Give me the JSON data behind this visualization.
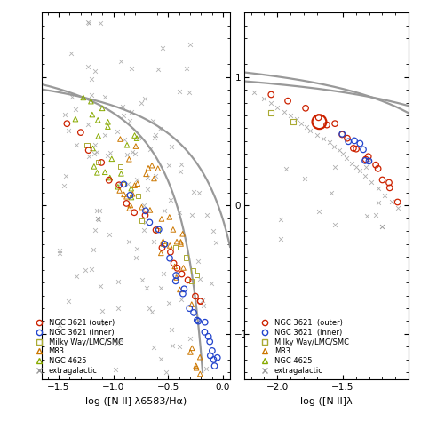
{
  "fig_width": 4.74,
  "fig_height": 4.74,
  "dpi": 100,
  "bg_color": "#ffffff",
  "panel1": {
    "xlim": [
      -1.65,
      0.07
    ],
    "ylim": [
      -1.35,
      1.5
    ],
    "xlabel": "log ([N II] λ6583/Hα)",
    "xticks": [
      -1.5,
      -1.0,
      -0.5,
      0.0
    ],
    "yticks": [
      -1.0,
      0.0,
      1.0
    ]
  },
  "panel2": {
    "xlim": [
      -2.25,
      -1.0
    ],
    "ylim": [
      -1.35,
      1.5
    ],
    "xlabel": "log ([N II]λ",
    "xticks": [
      -2.0,
      -1.5
    ],
    "yticks": [
      -1.0,
      0.0,
      1.0
    ]
  },
  "curve_color": "#999999",
  "curve_lw": 1.6,
  "ngc3621_outer_color": "#cc2200",
  "ngc3621_inner_color": "#2244cc",
  "mw_lmc_smc_color": "#aaaa33",
  "m83_color": "#cc7700",
  "ngc4625_color": "#88aa00",
  "extragalactic_color": "#999999",
  "legend_fontsize": 6.0,
  "axis_fontsize": 8.0,
  "tick_fontsize": 7.5
}
